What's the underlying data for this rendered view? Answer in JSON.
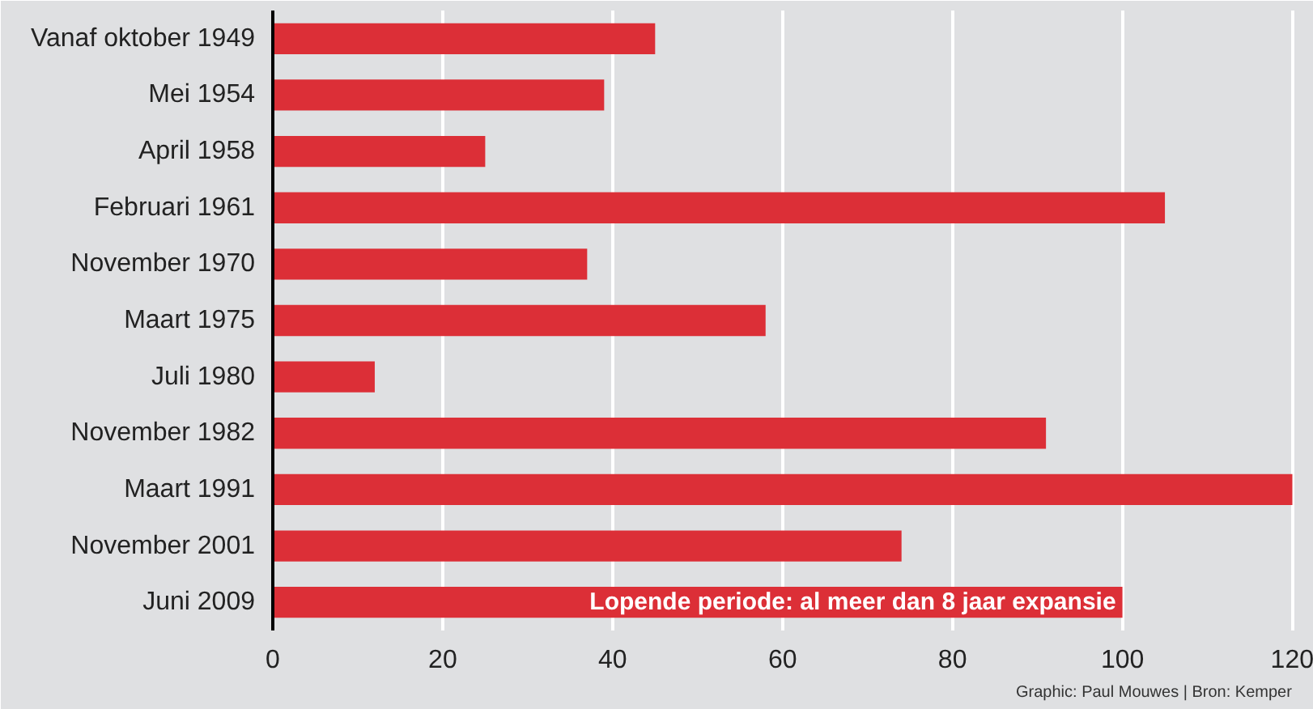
{
  "chart_data": {
    "type": "bar",
    "orientation": "horizontal",
    "categories": [
      "Vanaf oktober 1949",
      "Mei 1954",
      "April 1958",
      "Februari 1961",
      "November 1970",
      "Maart 1975",
      "Juli 1980",
      "November 1982",
      "Maart 1991",
      "November 2001",
      "Juni 2009"
    ],
    "values": [
      45,
      39,
      25,
      105,
      37,
      58,
      12,
      91,
      120,
      74,
      100
    ],
    "color": "#dc2f37",
    "xlim": [
      0,
      121
    ],
    "xticks": [
      0,
      20,
      40,
      60,
      80,
      100,
      120
    ],
    "grid": "x",
    "annotations": [
      {
        "text": "Lopende periode: al meer dan 8 jaar expansie",
        "x": 100,
        "y": "Juni 2009"
      },
      "Graphic: Paul Mouwes  |  Bron: Kemper"
    ]
  }
}
